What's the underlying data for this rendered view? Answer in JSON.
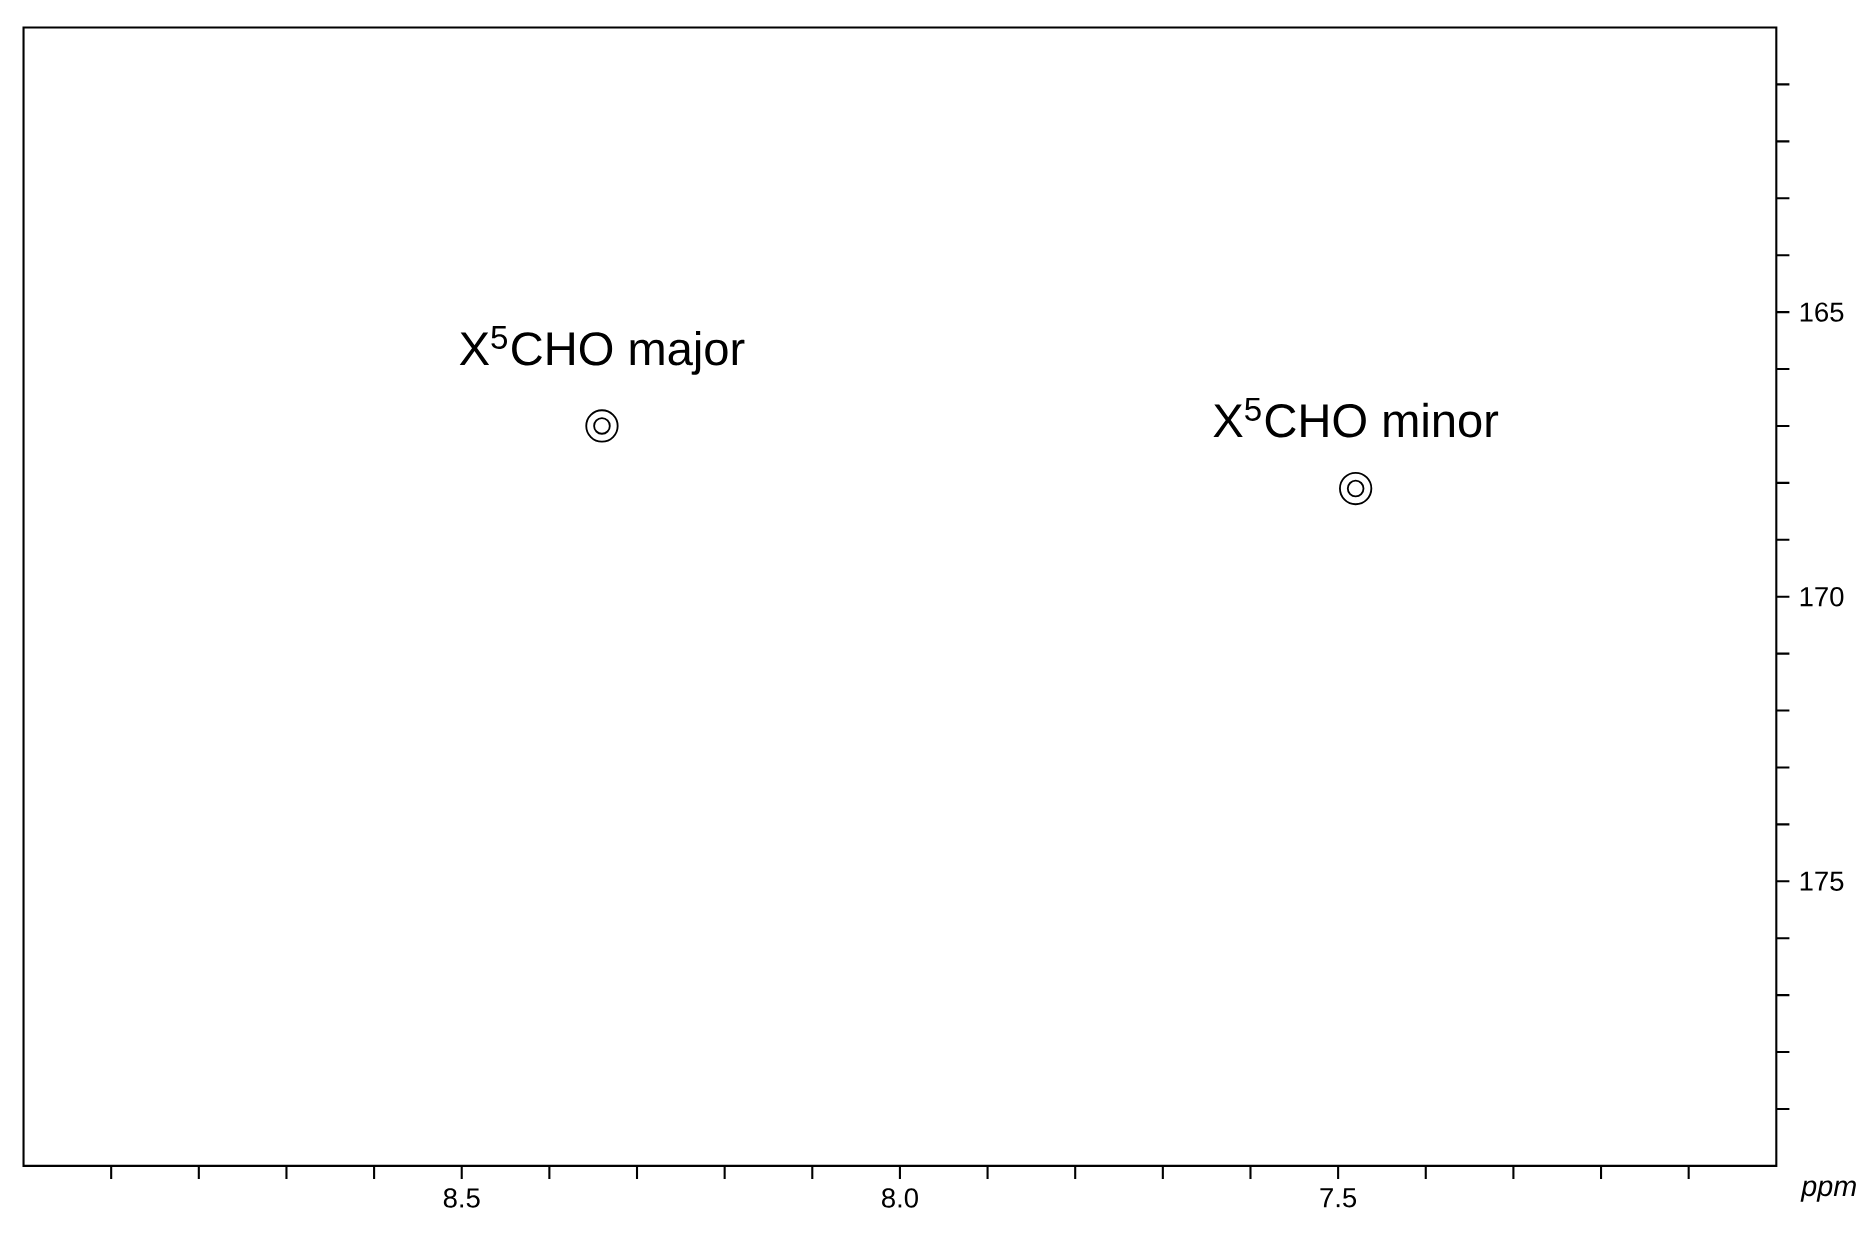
{
  "chart_data": {
    "type": "scatter",
    "xlabel": "ppm",
    "series": [
      {
        "color": "#000000",
        "x": [
          8.34,
          7.48
        ],
        "values": [
          167.0,
          168.1
        ]
      }
    ],
    "marker": "circle",
    "xlim": [
      9.0,
      7.0
    ],
    "ylim": [
      180,
      160
    ],
    "xticks": [
      {
        "value": 8.9,
        "label": null
      },
      {
        "value": 8.8,
        "label": null
      },
      {
        "value": 8.7,
        "label": null
      },
      {
        "value": 8.6,
        "label": null
      },
      {
        "value": 8.5,
        "label": "8.5"
      },
      {
        "value": 8.4,
        "label": null
      },
      {
        "value": 8.3,
        "label": null
      },
      {
        "value": 8.2,
        "label": null
      },
      {
        "value": 8.1,
        "label": null
      },
      {
        "value": 8.0,
        "label": "8.0"
      },
      {
        "value": 7.9,
        "label": null
      },
      {
        "value": 7.8,
        "label": null
      },
      {
        "value": 7.7,
        "label": null
      },
      {
        "value": 7.6,
        "label": null
      },
      {
        "value": 7.5,
        "label": "7.5"
      },
      {
        "value": 7.4,
        "label": null
      },
      {
        "value": 7.3,
        "label": null
      },
      {
        "value": 7.2,
        "label": null
      },
      {
        "value": 7.1,
        "label": null
      }
    ],
    "yticks": [
      {
        "value": 161,
        "label": null
      },
      {
        "value": 162,
        "label": null
      },
      {
        "value": 163,
        "label": null
      },
      {
        "value": 164,
        "label": null
      },
      165,
      {
        "value": 166,
        "label": null
      },
      {
        "value": 167,
        "label": null
      },
      {
        "value": 168,
        "label": null
      },
      {
        "value": 169,
        "label": null
      },
      170,
      {
        "value": 171,
        "label": null
      },
      {
        "value": 172,
        "label": null
      },
      {
        "value": 173,
        "label": null
      },
      {
        "value": 174,
        "label": null
      },
      175,
      {
        "value": 176,
        "label": null
      },
      {
        "value": 177,
        "label": null
      },
      {
        "value": 178,
        "label": null
      },
      {
        "value": 179,
        "label": null
      }
    ],
    "annotations": [
      "X$^{5}$CHO major",
      "X$^{5}$CHO minor"
    ]
  }
}
